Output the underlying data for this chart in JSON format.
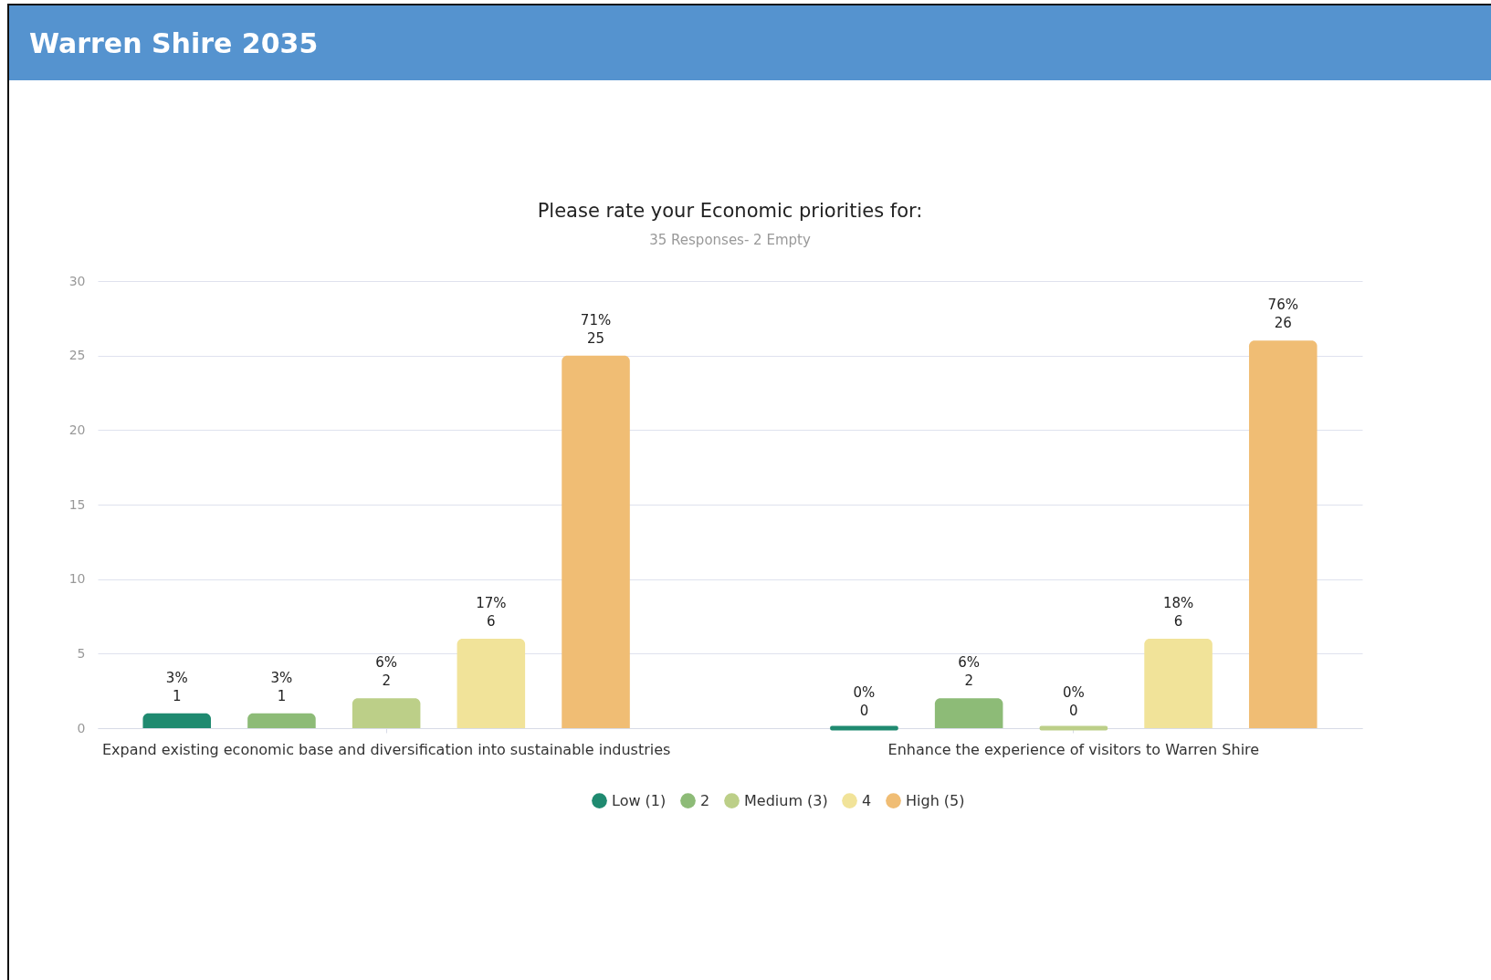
{
  "chart_data": {
    "type": "bar",
    "title": "Please rate your Economic priorities for:",
    "subtitle": "35 Responses- 2 Empty",
    "annotations": [
      "Warren Shire 2035"
    ],
    "categories": [
      "Expand existing economic base and diversification into sustainable industries",
      "Enhance the experience of visitors to Warren Shire"
    ],
    "series": [
      {
        "name": "Low (1)",
        "color": "#1f8a70",
        "values": [
          1,
          0
        ],
        "value_labels": [
          "3%\n1",
          "0%\n0"
        ]
      },
      {
        "name": "2",
        "color": "#8dbb77",
        "values": [
          1,
          2
        ],
        "value_labels": [
          "3%\n1",
          "6%\n2"
        ]
      },
      {
        "name": "Medium (3)",
        "color": "#bccf88",
        "values": [
          2,
          0
        ],
        "value_labels": [
          "6%\n2",
          "0%\n0"
        ]
      },
      {
        "name": "4",
        "color": "#f1e399",
        "values": [
          6,
          6
        ],
        "value_labels": [
          "17%\n6",
          "18%\n6"
        ]
      },
      {
        "name": "High (5)",
        "color": "#f0bd74",
        "values": [
          25,
          26
        ],
        "value_labels": [
          "71%\n25",
          "76%\n26"
        ]
      }
    ],
    "ylim": [
      0,
      30
    ],
    "yticks": [
      0,
      5,
      10,
      15,
      20,
      25,
      30
    ],
    "grid": "y",
    "legend": "bottom"
  }
}
